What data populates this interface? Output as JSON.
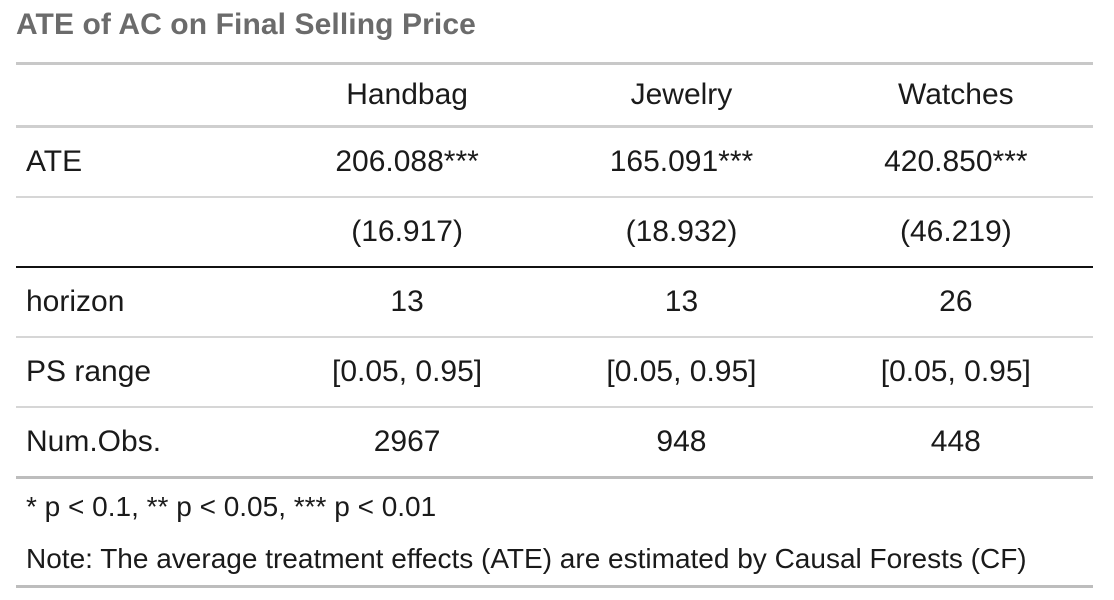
{
  "title": "ATE of AC on Final Selling Price",
  "table": {
    "columns": [
      "",
      "Handbag",
      "Jewelry",
      "Watches"
    ],
    "rows": [
      {
        "label": "ATE",
        "values": [
          "206.088***",
          "165.091***",
          "420.850***"
        ]
      },
      {
        "label": "",
        "values": [
          "(16.917)",
          "(18.932)",
          "(46.219)"
        ]
      },
      {
        "label": "horizon",
        "values": [
          "13",
          "13",
          "26"
        ]
      },
      {
        "label": "PS range",
        "values": [
          "[0.05, 0.95]",
          "[0.05, 0.95]",
          "[0.05, 0.95]"
        ]
      },
      {
        "label": "Num.Obs.",
        "values": [
          "2967",
          "948",
          "448"
        ]
      }
    ]
  },
  "footnotes": [
    "* p < 0.1, ** p < 0.05, *** p < 0.01",
    "Note: The average treatment effects (ATE) are estimated by Causal Forests (CF)"
  ]
}
